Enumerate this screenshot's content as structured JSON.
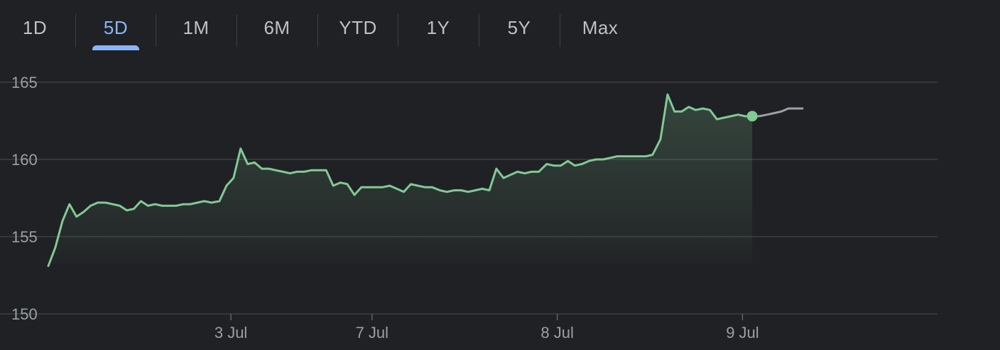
{
  "tabs": [
    {
      "label": "1D",
      "selected": false
    },
    {
      "label": "5D",
      "selected": true
    },
    {
      "label": "1M",
      "selected": false
    },
    {
      "label": "6M",
      "selected": false
    },
    {
      "label": "YTD",
      "selected": false
    },
    {
      "label": "1Y",
      "selected": false
    },
    {
      "label": "5Y",
      "selected": false
    },
    {
      "label": "Max",
      "selected": false
    }
  ],
  "colors": {
    "line": "#81c995",
    "future_line": "#9aa0a6",
    "accent": "#8ab4f8",
    "grid": "#3c4043"
  },
  "chart_data": {
    "type": "area",
    "ylim": [
      150,
      165
    ],
    "yticks": [
      "165",
      "160",
      "155",
      "150"
    ],
    "grid": true,
    "xlim": [
      0,
      100
    ],
    "xticks": [
      {
        "x": 20.7,
        "label": "3 Jul"
      },
      {
        "x": 36.7,
        "label": "7 Jul"
      },
      {
        "x": 57.7,
        "label": "8 Jul"
      },
      {
        "x": 78.7,
        "label": "9 Jul"
      }
    ],
    "series": [
      {
        "values": [
          [
            0,
            153.1
          ],
          [
            0.8,
            154.3
          ],
          [
            1.6,
            156.0
          ],
          [
            2.4,
            157.1
          ],
          [
            3.2,
            156.3
          ],
          [
            4.0,
            156.6
          ],
          [
            4.8,
            157.0
          ],
          [
            5.6,
            157.2
          ],
          [
            6.5,
            157.2
          ],
          [
            7.3,
            157.1
          ],
          [
            8.1,
            157.0
          ],
          [
            8.9,
            156.7
          ],
          [
            9.7,
            156.8
          ],
          [
            10.5,
            157.3
          ],
          [
            11.3,
            157.0
          ],
          [
            12.1,
            157.1
          ],
          [
            12.9,
            157.0
          ],
          [
            13.7,
            157.0
          ],
          [
            14.5,
            157.0
          ],
          [
            15.3,
            157.1
          ],
          [
            16.1,
            157.1
          ],
          [
            16.9,
            157.2
          ],
          [
            17.7,
            157.3
          ],
          [
            18.5,
            157.2
          ],
          [
            19.4,
            157.3
          ],
          [
            20.2,
            158.3
          ],
          [
            21.0,
            158.8
          ],
          [
            21.8,
            160.7
          ],
          [
            22.6,
            159.7
          ],
          [
            23.4,
            159.8
          ],
          [
            24.2,
            159.4
          ],
          [
            25.0,
            159.4
          ],
          [
            25.8,
            159.3
          ],
          [
            26.6,
            159.2
          ],
          [
            27.4,
            159.1
          ],
          [
            28.2,
            159.2
          ],
          [
            29.0,
            159.2
          ],
          [
            29.8,
            159.3
          ],
          [
            30.6,
            159.3
          ],
          [
            31.5,
            159.3
          ],
          [
            32.3,
            158.3
          ],
          [
            33.1,
            158.5
          ],
          [
            33.9,
            158.4
          ],
          [
            34.7,
            157.7
          ],
          [
            35.5,
            158.2
          ],
          [
            36.3,
            158.2
          ],
          [
            37.1,
            158.2
          ],
          [
            37.9,
            158.2
          ],
          [
            38.7,
            158.3
          ],
          [
            39.5,
            158.1
          ],
          [
            40.3,
            157.9
          ],
          [
            41.1,
            158.4
          ],
          [
            41.9,
            158.3
          ],
          [
            42.7,
            158.2
          ],
          [
            43.5,
            158.2
          ],
          [
            44.4,
            158.0
          ],
          [
            45.2,
            157.9
          ],
          [
            46.0,
            158.0
          ],
          [
            46.8,
            158.0
          ],
          [
            47.6,
            157.9
          ],
          [
            48.4,
            158.0
          ],
          [
            49.2,
            158.1
          ],
          [
            50.0,
            158.0
          ],
          [
            50.8,
            159.4
          ],
          [
            51.6,
            158.8
          ],
          [
            52.4,
            159.0
          ],
          [
            53.2,
            159.2
          ],
          [
            54.0,
            159.1
          ],
          [
            54.8,
            159.2
          ],
          [
            55.6,
            159.2
          ],
          [
            56.5,
            159.7
          ],
          [
            57.3,
            159.6
          ],
          [
            58.1,
            159.6
          ],
          [
            58.9,
            159.9
          ],
          [
            59.7,
            159.6
          ],
          [
            60.5,
            159.7
          ],
          [
            61.3,
            159.9
          ],
          [
            62.1,
            160.0
          ],
          [
            62.9,
            160.0
          ],
          [
            63.7,
            160.1
          ],
          [
            64.5,
            160.2
          ],
          [
            65.3,
            160.2
          ],
          [
            66.1,
            160.2
          ],
          [
            66.9,
            160.2
          ],
          [
            67.7,
            160.2
          ],
          [
            68.5,
            160.3
          ],
          [
            69.4,
            161.3
          ],
          [
            70.2,
            164.2
          ],
          [
            71.0,
            163.1
          ],
          [
            71.8,
            163.1
          ],
          [
            72.6,
            163.4
          ],
          [
            73.4,
            163.2
          ],
          [
            74.2,
            163.3
          ],
          [
            75.0,
            163.2
          ],
          [
            75.8,
            162.6
          ],
          [
            76.6,
            162.7
          ],
          [
            77.4,
            162.8
          ],
          [
            78.2,
            162.9
          ],
          [
            79.0,
            162.8
          ],
          [
            79.8,
            162.8
          ]
        ]
      },
      {
        "values": [
          [
            79.8,
            162.8
          ],
          [
            80.6,
            162.8
          ],
          [
            81.5,
            162.9
          ],
          [
            82.3,
            163.0
          ],
          [
            83.1,
            163.1
          ],
          [
            83.9,
            163.3
          ],
          [
            84.7,
            163.3
          ],
          [
            85.5,
            163.3
          ]
        ]
      }
    ]
  }
}
